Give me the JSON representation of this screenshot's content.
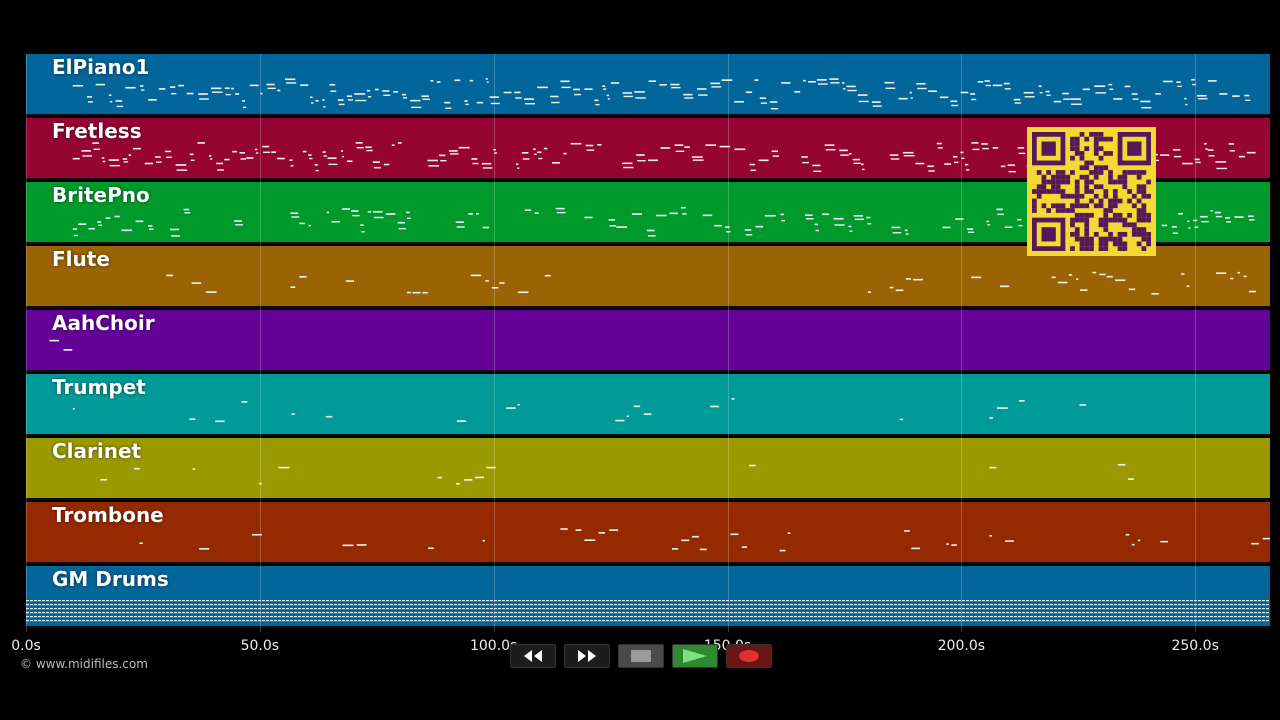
{
  "tracks": [
    {
      "name": "ElPiano1",
      "color": "#03669b",
      "density": 1.0,
      "ranges": [
        [
          10,
          262
        ]
      ]
    },
    {
      "name": "Fretless",
      "color": "#960433",
      "density": 0.9,
      "ranges": [
        [
          10,
          262
        ]
      ]
    },
    {
      "name": "BritePno",
      "color": "#009a2c",
      "density": 0.8,
      "ranges": [
        [
          10,
          262
        ]
      ]
    },
    {
      "name": "Flute",
      "color": "#9a6304",
      "density": 0.6,
      "ranges": [
        [
          30,
          112
        ],
        [
          180,
          262
        ]
      ]
    },
    {
      "name": "AahChoir",
      "color": "#650399",
      "density": 0.3,
      "ranges": [
        [
          5,
          18
        ]
      ]
    },
    {
      "name": "Trumpet",
      "color": "#009b98",
      "density": 0.3,
      "ranges": [
        [
          10,
          72
        ],
        [
          88,
          108
        ],
        [
          126,
          164
        ],
        [
          182,
          196
        ],
        [
          206,
          226
        ],
        [
          262,
          266
        ]
      ]
    },
    {
      "name": "Clarinet",
      "color": "#9a9a00",
      "density": 0.35,
      "ranges": [
        [
          10,
          72
        ],
        [
          88,
          108
        ],
        [
          126,
          170
        ],
        [
          182,
          196
        ],
        [
          206,
          238
        ],
        [
          262,
          266
        ]
      ]
    },
    {
      "name": "Trombone",
      "color": "#952a00",
      "density": 0.4,
      "ranges": [
        [
          10,
          76
        ],
        [
          86,
          98
        ],
        [
          108,
          164
        ],
        [
          182,
          198
        ],
        [
          206,
          216
        ],
        [
          230,
          254
        ],
        [
          262,
          266
        ]
      ]
    },
    {
      "name": "GM Drums",
      "color": "#03669b",
      "density": 1.0,
      "ranges": [
        [
          0,
          266
        ]
      ]
    }
  ],
  "timeline": {
    "ticks": [
      "0.0s",
      "50.0s",
      "100.0s",
      "150.0s",
      "200.0s",
      "250.0s"
    ],
    "tick_values": [
      0,
      50,
      100,
      150,
      200,
      250
    ],
    "max_seconds": 266
  },
  "copyright": "© www.midifiles.com",
  "transport": {
    "rewind_icon": "rewind-icon",
    "fast_forward_icon": "fast-forward-icon",
    "stop_icon": "stop-icon",
    "play_icon": "play-icon",
    "record_icon": "record-icon"
  },
  "qr_code": {
    "color": "#f5d832",
    "module_color": "#55195a"
  }
}
